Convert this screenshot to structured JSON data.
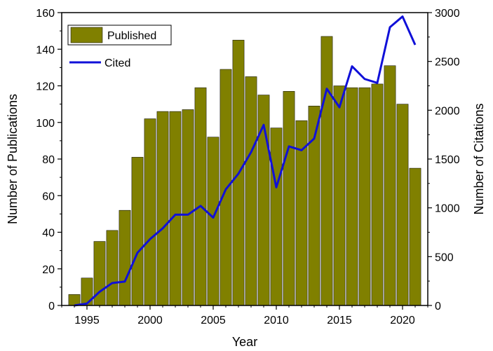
{
  "chart_data": {
    "type": "bar",
    "x": [
      1994,
      1995,
      1996,
      1997,
      1998,
      1999,
      2000,
      2001,
      2002,
      2003,
      2004,
      2005,
      2006,
      2007,
      2008,
      2009,
      2010,
      2011,
      2012,
      2013,
      2014,
      2015,
      2016,
      2017,
      2018,
      2019,
      2020,
      2021
    ],
    "xlabel": "Year",
    "xticks": [
      1995,
      2000,
      2005,
      2010,
      2015,
      2020
    ],
    "xlim": [
      1993,
      2022
    ],
    "ylabel_left": "Number of Publications",
    "ylim_left": [
      0,
      160
    ],
    "yticks_left": [
      0,
      20,
      40,
      60,
      80,
      100,
      120,
      140,
      160
    ],
    "ylabel_right": "Number of Citations",
    "ylim_right": [
      0,
      3000
    ],
    "yticks_right": [
      0,
      500,
      1000,
      1500,
      2000,
      2500,
      3000
    ],
    "series": [
      {
        "name": "Published",
        "type": "bar",
        "axis": "left",
        "color": "#808000",
        "values": [
          6,
          15,
          35,
          41,
          52,
          81,
          102,
          106,
          106,
          107,
          119,
          92,
          129,
          145,
          125,
          115,
          97,
          117,
          101,
          109,
          147,
          120,
          119,
          119,
          121,
          131,
          110,
          75
        ]
      },
      {
        "name": "Cited",
        "type": "line",
        "axis": "right",
        "color": "#1010d8",
        "values": [
          0,
          20,
          140,
          230,
          245,
          540,
          680,
          790,
          930,
          930,
          1020,
          900,
          1190,
          1350,
          1570,
          1850,
          1210,
          1630,
          1590,
          1710,
          2220,
          2030,
          2450,
          2320,
          2280,
          2850,
          2960,
          2670
        ]
      }
    ],
    "legend_position": "top-left",
    "grid": false
  }
}
